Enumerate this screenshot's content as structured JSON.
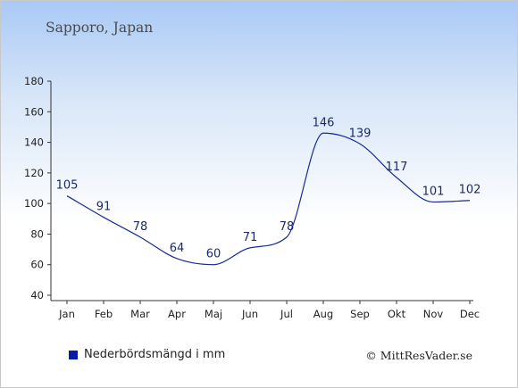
{
  "location": "Sapporo, Japan",
  "legend_label": "Nederbördsmängd i mm",
  "credit": "© MittResVader.se",
  "colors": {
    "line": "#1a2a9c",
    "legend": "#0a1aa8",
    "axis": "#333333"
  },
  "chart_data": {
    "type": "line",
    "title": "",
    "xlabel": "",
    "ylabel": "",
    "categories": [
      "Jan",
      "Feb",
      "Mar",
      "Apr",
      "Maj",
      "Jun",
      "Jul",
      "Aug",
      "Sep",
      "Okt",
      "Nov",
      "Dec"
    ],
    "series": [
      {
        "name": "Nederbördsmängd i mm",
        "values": [
          105,
          91,
          78,
          64,
          60,
          71,
          78,
          146,
          139,
          117,
          101,
          102
        ]
      }
    ],
    "ylim": [
      40,
      180
    ],
    "yticks": [
      40,
      60,
      80,
      100,
      120,
      140,
      160,
      180
    ],
    "grid": false,
    "legend": "bottom-left"
  }
}
